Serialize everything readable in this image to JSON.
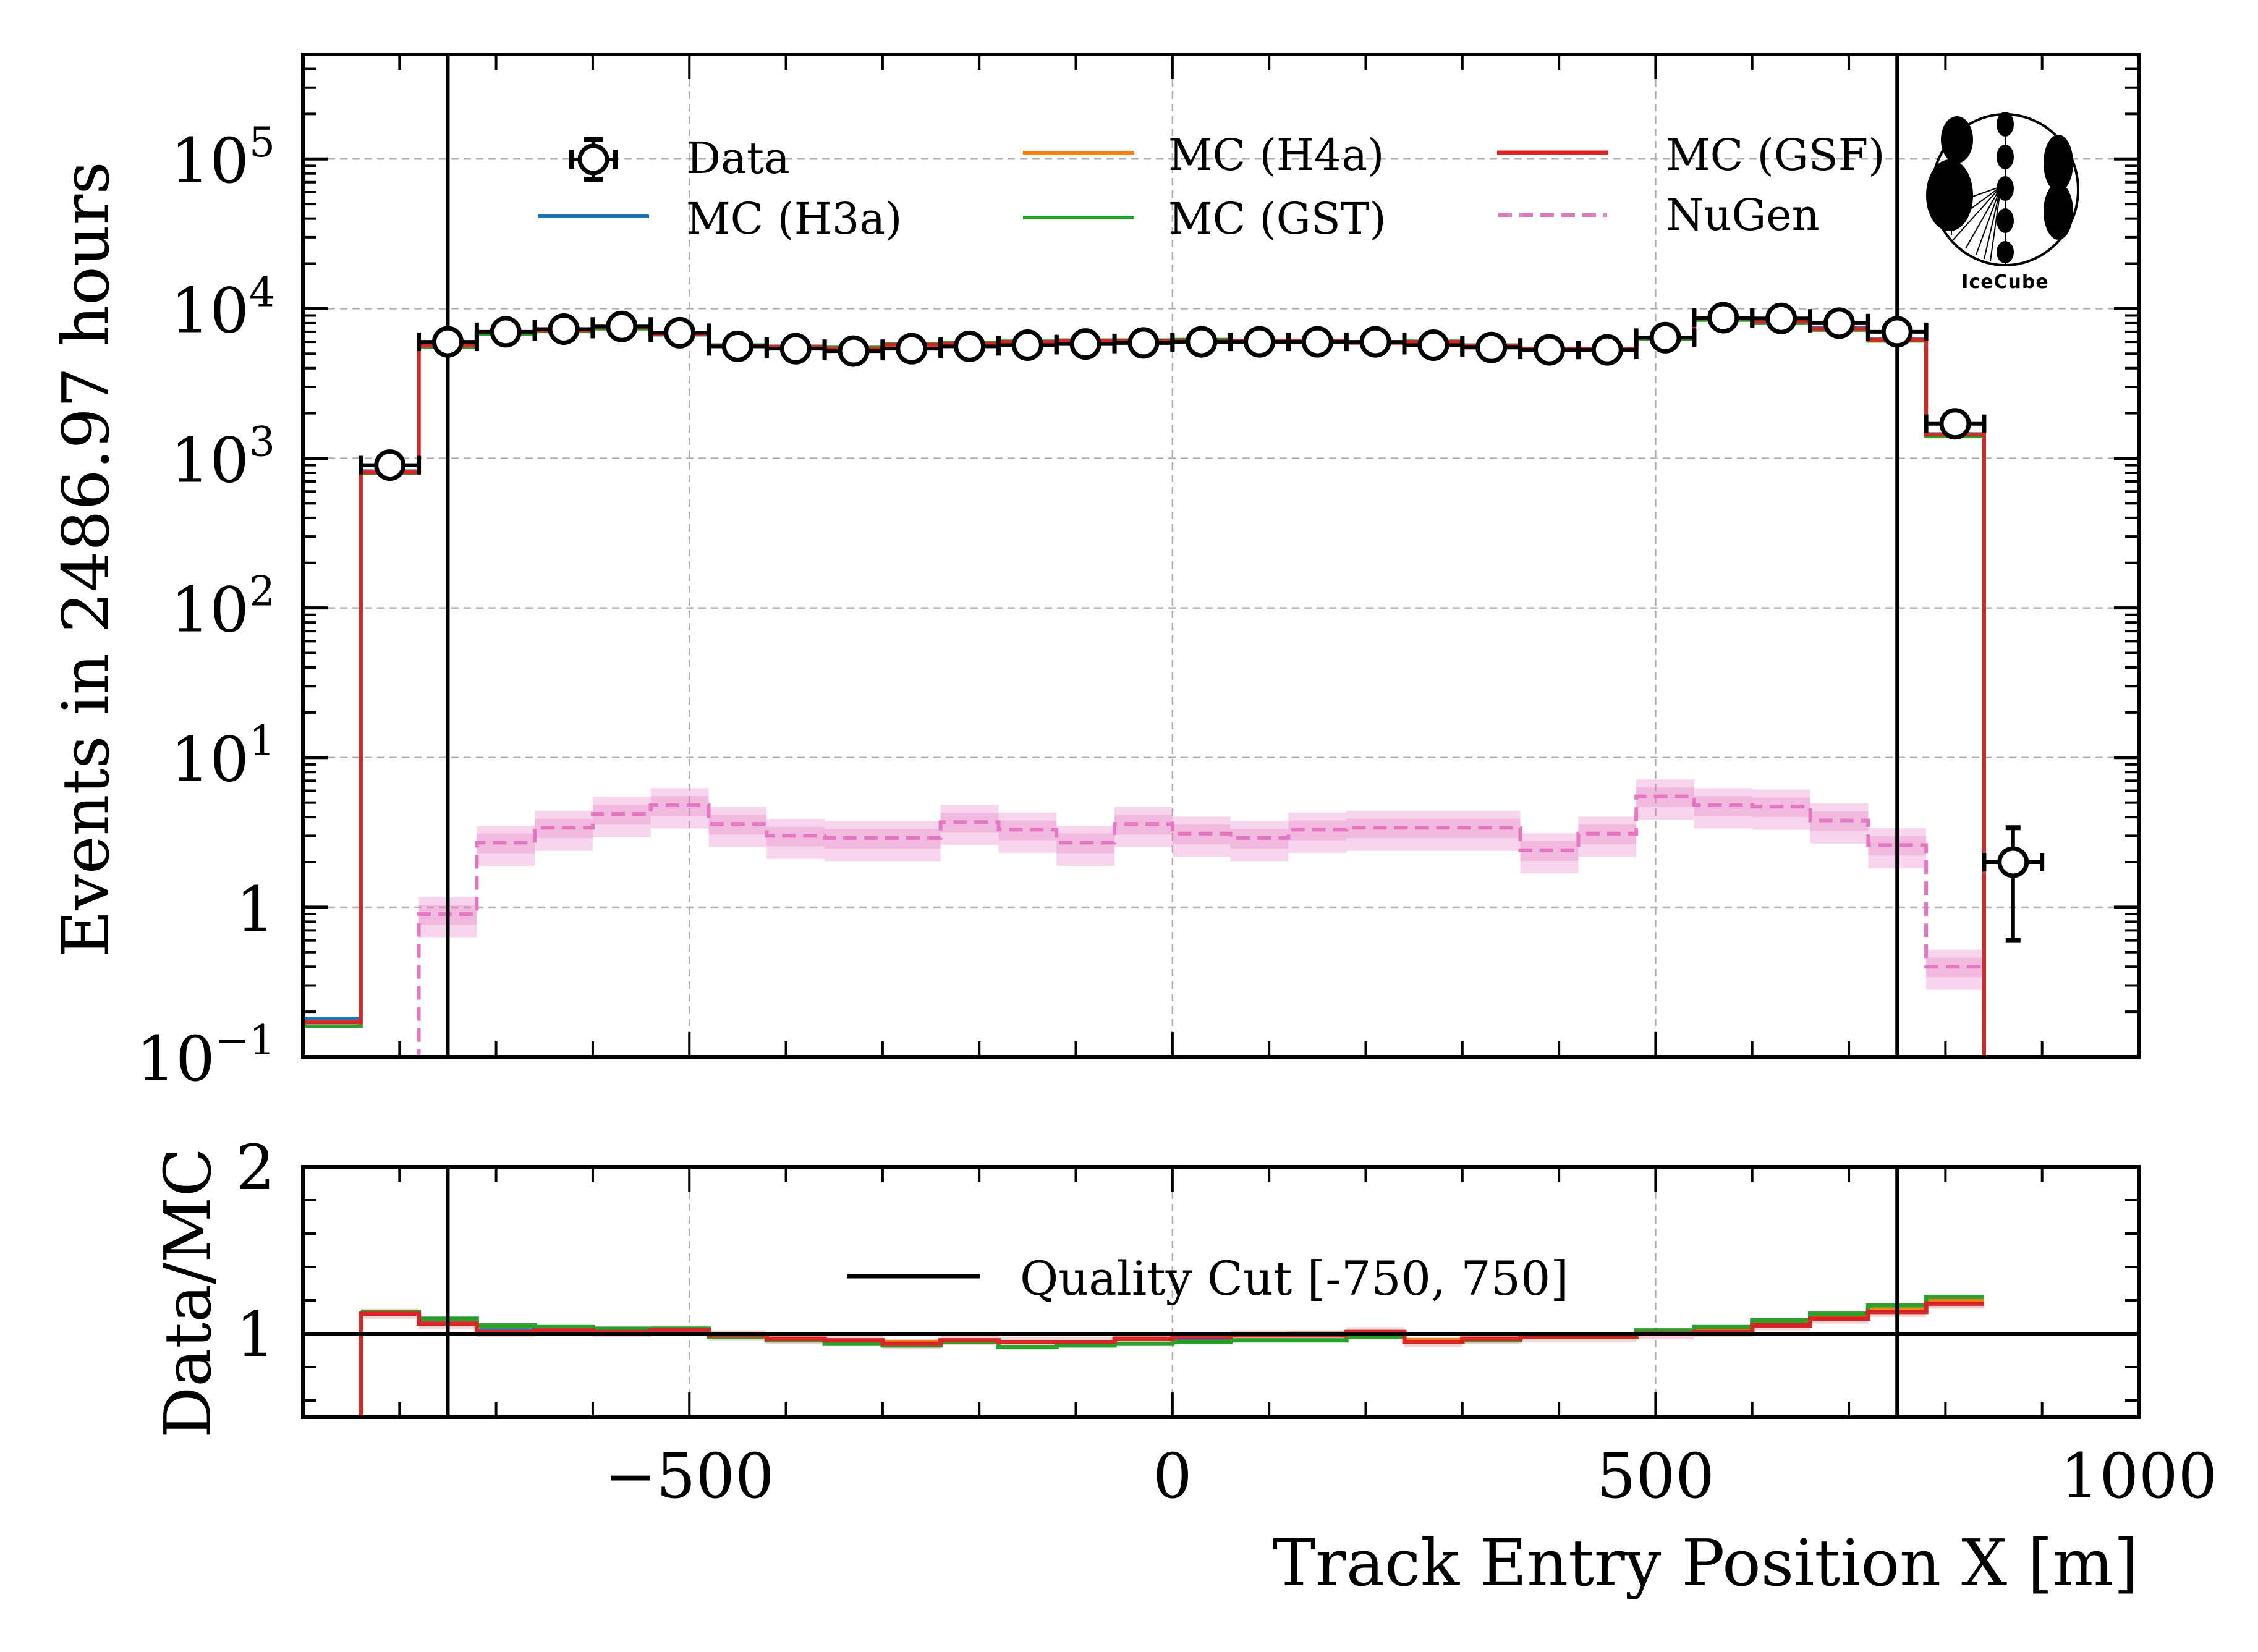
{
  "chart_data": [
    {
      "panel": "main",
      "type": "line",
      "subtype": "step-histogram-with-data-points",
      "title": "",
      "xlabel": "Track Entry Position X [m]",
      "ylabel": "Events in 2486.97 hours",
      "yscale": "log",
      "xlim": [
        -900,
        1000
      ],
      "ylim": [
        0.1,
        500000
      ],
      "grid": true,
      "legend_placement": "top",
      "y_tick_labels": [
        {
          "value": 100000,
          "base": "10",
          "exp": "5"
        },
        {
          "value": 10000,
          "base": "10",
          "exp": "4"
        },
        {
          "value": 1000,
          "base": "10",
          "exp": "3"
        },
        {
          "value": 100,
          "base": "10",
          "exp": "2"
        },
        {
          "value": 10,
          "base": "10",
          "exp": "1"
        },
        {
          "value": 1,
          "base": "1",
          "exp": ""
        },
        {
          "value": 0.1,
          "base": "10",
          "exp": "−1"
        }
      ],
      "bin_edges": [
        -900,
        -840,
        -780,
        -720,
        -660,
        -600,
        -540,
        -480,
        -420,
        -360,
        -300,
        -240,
        -180,
        -120,
        -60,
        0,
        60,
        120,
        180,
        240,
        300,
        360,
        420,
        480,
        540,
        600,
        660,
        720,
        780,
        840,
        900
      ],
      "vertical_lines": [
        -750,
        750
      ],
      "data_points": {
        "name": "Data",
        "x": [
          -810,
          -750,
          -690,
          -630,
          -570,
          -510,
          -450,
          -390,
          -330,
          -270,
          -210,
          -150,
          -90,
          -30,
          30,
          90,
          150,
          210,
          270,
          330,
          390,
          450,
          510,
          570,
          630,
          690,
          750,
          810,
          870
        ],
        "y": [
          900,
          6000,
          7000,
          7300,
          7600,
          6900,
          5600,
          5400,
          5200,
          5400,
          5600,
          5700,
          5800,
          5900,
          6000,
          6000,
          6000,
          6000,
          5700,
          5500,
          5300,
          5300,
          6400,
          8700,
          8600,
          8000,
          7000,
          1700,
          2
        ],
        "yerr_low": [
          0,
          0,
          0,
          0,
          0,
          0,
          0,
          0,
          0,
          0,
          0,
          0,
          0,
          0,
          0,
          0,
          0,
          0,
          0,
          0,
          0,
          0,
          0,
          0,
          0,
          0,
          0,
          0,
          1.4
        ],
        "yerr_high": [
          0,
          0,
          0,
          0,
          0,
          0,
          0,
          0,
          0,
          0,
          0,
          0,
          0,
          0,
          0,
          0,
          0,
          0,
          0,
          0,
          0,
          0,
          0,
          0,
          0,
          0,
          0,
          0,
          1.4
        ]
      },
      "series": [
        {
          "name": "MC (H3a)",
          "color": "#1f77b4",
          "style": "solid",
          "values": [
            0.18,
            820,
            5700,
            6900,
            7100,
            7400,
            6800,
            5600,
            5500,
            5400,
            5700,
            5800,
            5950,
            6050,
            6050,
            6100,
            6050,
            6050,
            5900,
            6000,
            5650,
            5400,
            5400,
            6350,
            8550,
            8200,
            7400,
            6300,
            1450,
            0
          ]
        },
        {
          "name": "MC (H4a)",
          "color": "#ff7f0e",
          "style": "solid",
          "values": [
            0.17,
            810,
            5650,
            6950,
            7150,
            7450,
            6800,
            5650,
            5550,
            5450,
            5700,
            5800,
            6000,
            6050,
            6100,
            6100,
            6050,
            6000,
            5900,
            6000,
            5650,
            5400,
            5400,
            6300,
            8500,
            8150,
            7300,
            6200,
            1430,
            0
          ]
        },
        {
          "name": "MC (GST)",
          "color": "#2ca02c",
          "style": "solid",
          "values": [
            0.16,
            800,
            5550,
            6750,
            7050,
            7350,
            6700,
            5700,
            5600,
            5500,
            5800,
            5900,
            6050,
            6150,
            6150,
            6200,
            6100,
            6100,
            5950,
            6050,
            5700,
            5400,
            5400,
            6250,
            8400,
            8000,
            7200,
            6100,
            1400,
            0
          ]
        },
        {
          "name": "MC (GSF)",
          "color": "#d62728",
          "style": "solid",
          "values": [
            0.17,
            805,
            5660,
            6930,
            7160,
            7520,
            6760,
            5650,
            5570,
            5420,
            5740,
            5830,
            6000,
            6100,
            6080,
            6120,
            6060,
            6060,
            5940,
            6000,
            5670,
            5410,
            5410,
            6400,
            8610,
            8190,
            7340,
            6190,
            1440,
            0
          ]
        },
        {
          "name": "NuGen",
          "color": "#e377c2",
          "style": "dashed",
          "values": [
            0,
            0,
            0.9,
            2.7,
            3.4,
            4.2,
            4.8,
            3.6,
            3.0,
            2.9,
            2.9,
            3.7,
            3.3,
            2.7,
            3.6,
            3.1,
            2.9,
            3.3,
            3.4,
            3.4,
            3.4,
            2.4,
            3.1,
            5.5,
            4.8,
            4.7,
            3.8,
            2.6,
            0.4,
            0
          ],
          "band_rel_low": 0.7,
          "band_rel_high": 1.3
        }
      ],
      "logo_text": "IceCube"
    },
    {
      "panel": "ratio",
      "type": "line",
      "subtype": "step-ratio",
      "xlabel": "Track Entry Position X [m]",
      "ylabel": "Data/MC",
      "xlim": [
        -900,
        1000
      ],
      "ylim": [
        0.5,
        2
      ],
      "x_tick_labels": [
        {
          "value": -500,
          "label": "−500"
        },
        {
          "value": 0,
          "label": "0"
        },
        {
          "value": 500,
          "label": "500"
        },
        {
          "value": 1000,
          "label": "1000"
        }
      ],
      "y_tick_labels": [
        {
          "value": 1,
          "label": "1"
        },
        {
          "value": 2,
          "label": "2"
        }
      ],
      "reference_line": 1,
      "vertical_lines": [
        -750,
        750
      ],
      "legend": [
        {
          "name": "Quality Cut [-750, 750]",
          "color": "#000000"
        }
      ],
      "bin_edges": [
        -840,
        -780,
        -720,
        -660,
        -600,
        -540,
        -480,
        -420,
        -360,
        -300,
        -240,
        -180,
        -120,
        -60,
        0,
        60,
        120,
        180,
        240,
        300,
        360,
        420,
        480,
        540,
        600,
        660,
        720,
        780,
        840
      ],
      "series": [
        {
          "name": "MC (H3a)",
          "color": "#1f77b4",
          "values": [
            1.12,
            1.06,
            1.02,
            1.02,
            1.01,
            1.02,
            0.99,
            0.97,
            0.96,
            0.95,
            0.96,
            0.95,
            0.95,
            0.97,
            0.97,
            0.99,
            0.99,
            1.01,
            0.96,
            0.97,
            0.98,
            0.98,
            1.01,
            1.02,
            1.06,
            1.1,
            1.14,
            1.19
          ]
        },
        {
          "name": "MC (H4a)",
          "color": "#ff7f0e",
          "values": [
            1.12,
            1.06,
            1.01,
            1.02,
            1.01,
            1.02,
            0.99,
            0.97,
            0.96,
            0.95,
            0.96,
            0.95,
            0.95,
            0.97,
            0.98,
            0.99,
            1.0,
            1.01,
            0.96,
            0.97,
            0.98,
            0.98,
            1.01,
            1.02,
            1.06,
            1.1,
            1.15,
            1.2
          ]
        },
        {
          "name": "MC (GST)",
          "color": "#2ca02c",
          "values": [
            1.13,
            1.09,
            1.05,
            1.04,
            1.03,
            1.03,
            0.98,
            0.96,
            0.94,
            0.93,
            0.95,
            0.92,
            0.93,
            0.94,
            0.95,
            0.96,
            0.96,
            0.98,
            0.95,
            0.96,
            0.98,
            0.98,
            1.02,
            1.04,
            1.08,
            1.12,
            1.17,
            1.22
          ]
        },
        {
          "name": "MC (GSF)",
          "color": "#d62728",
          "values": [
            1.12,
            1.06,
            1.01,
            1.02,
            1.01,
            1.02,
            0.99,
            0.97,
            0.96,
            0.94,
            0.96,
            0.95,
            0.95,
            0.97,
            0.98,
            0.99,
            0.99,
            1.01,
            0.95,
            0.97,
            0.98,
            0.98,
            1.0,
            1.01,
            1.05,
            1.09,
            1.13,
            1.18
          ]
        }
      ]
    }
  ]
}
